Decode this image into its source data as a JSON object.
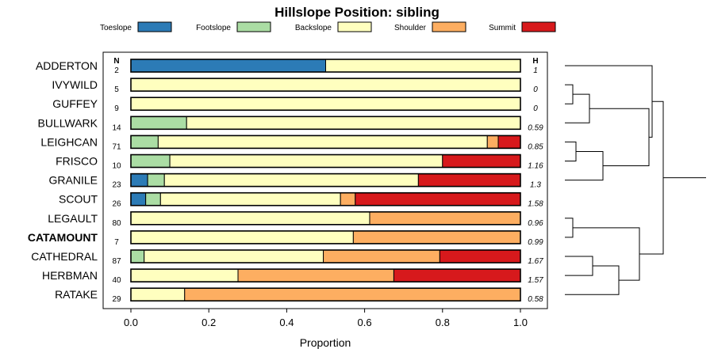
{
  "chart_data": {
    "type": "bar",
    "title": "Hillslope Position: sibling",
    "xlabel": "Proportion",
    "xlim": [
      0,
      1
    ],
    "x_ticks": [
      "0.0",
      "0.2",
      "0.4",
      "0.6",
      "0.8",
      "1.0"
    ],
    "n_header": "N",
    "h_header": "H",
    "legend_position": "top",
    "series": [
      {
        "name": "Toeslope",
        "color": "#2C7BB6"
      },
      {
        "name": "Footslope",
        "color": "#ABDDA4"
      },
      {
        "name": "Backslope",
        "color": "#FFFFBF"
      },
      {
        "name": "Shoulder",
        "color": "#FDAE61"
      },
      {
        "name": "Summit",
        "color": "#D7191C"
      }
    ],
    "rows": [
      {
        "label": "ADDERTON",
        "n": "2",
        "h": "1",
        "values": [
          0.5,
          0,
          0.5,
          0,
          0
        ]
      },
      {
        "label": "IVYWILD",
        "n": "5",
        "h": "0",
        "values": [
          0,
          0,
          1.0,
          0,
          0
        ]
      },
      {
        "label": "GUFFEY",
        "n": "9",
        "h": "0",
        "values": [
          0,
          0,
          1.0,
          0,
          0
        ]
      },
      {
        "label": "BULLWARK",
        "n": "14",
        "h": "0.59",
        "values": [
          0,
          0.143,
          0.857,
          0,
          0
        ]
      },
      {
        "label": "LEIGHCAN",
        "n": "71",
        "h": "0.85",
        "values": [
          0,
          0.07,
          0.845,
          0.028,
          0.057
        ]
      },
      {
        "label": "FRISCO",
        "n": "10",
        "h": "1.16",
        "values": [
          0,
          0.1,
          0.7,
          0,
          0.2
        ]
      },
      {
        "label": "GRANILE",
        "n": "23",
        "h": "1.3",
        "values": [
          0.043,
          0.043,
          0.652,
          0,
          0.262
        ]
      },
      {
        "label": "SCOUT",
        "n": "26",
        "h": "1.58",
        "values": [
          0.038,
          0.038,
          0.462,
          0.038,
          0.424
        ]
      },
      {
        "label": "LEGAULT",
        "n": "80",
        "h": "0.96",
        "values": [
          0,
          0,
          0.613,
          0.387,
          0
        ]
      },
      {
        "label": "CATAMOUNT",
        "n": "7",
        "h": "0.99",
        "values": [
          0,
          0,
          0.571,
          0.429,
          0
        ],
        "bold": true
      },
      {
        "label": "CATHEDRAL",
        "n": "87",
        "h": "1.67",
        "values": [
          0,
          0.034,
          0.46,
          0.299,
          0.207
        ]
      },
      {
        "label": "HERBMAN",
        "n": "40",
        "h": "1.57",
        "values": [
          0,
          0,
          0.275,
          0.4,
          0.325
        ]
      },
      {
        "label": "RATAKE",
        "n": "29",
        "h": "0.58",
        "values": [
          0,
          0,
          0.138,
          0.862,
          0
        ]
      }
    ]
  }
}
